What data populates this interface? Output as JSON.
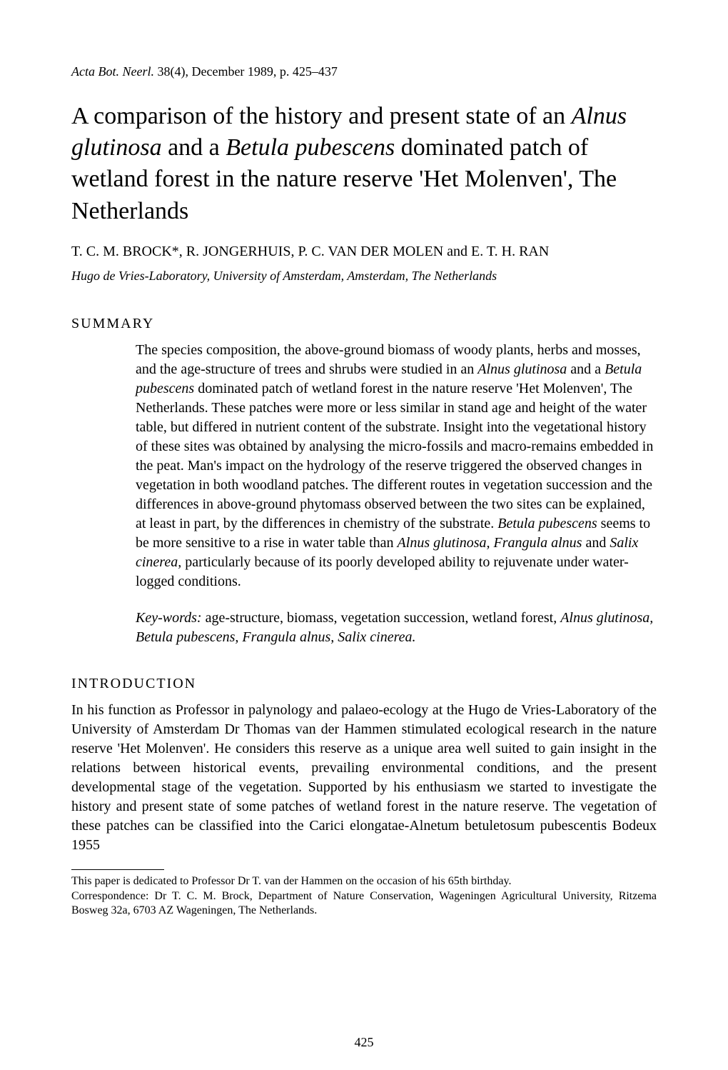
{
  "journal_reference": "Acta Bot. Neerl. 38(4), December 1989, p. 425–437",
  "title_part1": "A comparison of the history and present state of an ",
  "title_italic1": "Alnus glutinosa",
  "title_part2": " and a ",
  "title_italic2": "Betula pubescens",
  "title_part3": " dominated patch of wetland forest in the nature reserve 'Het Molenven', The Netherlands",
  "authors": "T. C. M. BROCK*, R. JONGERHUIS, P. C. VAN DER MOLEN and E. T. H. RAN",
  "affiliation": "Hugo de Vries-Laboratory, University of Amsterdam, Amsterdam, The Netherlands",
  "summary_heading": "SUMMARY",
  "summary_p1_a": "The species composition, the above-ground biomass of woody plants, herbs and mosses, and the age-structure of trees and shrubs were studied in an ",
  "summary_p1_i1": "Alnus glutinosa",
  "summary_p1_b": " and a ",
  "summary_p1_i2": "Betula pubescens",
  "summary_p1_c": " dominated patch of wetland forest in the nature reserve 'Het Molenven', The Netherlands. These patches were more or less similar in stand age and height of the water table, but differed in nutrient content of the substrate. Insight into the vegetational history of these sites was obtained by analysing the micro-fossils and macro-remains embedded in the peat. Man's impact on the hydrology of the reserve triggered the observed changes in vegetation in both woodland patches. The different routes in vegetation succession and the differences in above-ground phytomass observed between the two sites can be explained, at least in part, by the differences in chemistry of the substrate. ",
  "summary_p1_i3": "Betula pubescens",
  "summary_p1_d": " seems to be more sensitive to a rise in water table than ",
  "summary_p1_i4": "Alnus glutinosa, Frangula alnus",
  "summary_p1_e": " and ",
  "summary_p1_i5": "Salix cinerea,",
  "summary_p1_f": " particularly because of its poorly developed ability to rejuvenate under water-logged conditions.",
  "keywords_label": "Key-words:",
  "keywords_a": " age-structure, biomass, vegetation succession, wetland forest, ",
  "keywords_i": "Alnus glutinosa, Betula pubescens, Frangula alnus, Salix cinerea.",
  "intro_heading": "INTRODUCTION",
  "intro_body": "In his function as Professor in palynology and palaeo-ecology at the Hugo de Vries-Laboratory of the University of Amsterdam Dr Thomas van der Hammen stimulated ecological research in the nature reserve 'Het Molenven'. He considers this reserve as a unique area well suited to gain insight in the relations between historical events, prevailing environmental conditions, and the present developmental stage of the vegetation. Supported by his enthusiasm we started to investigate the history and present state of some patches of wetland forest in the nature reserve. The vegetation of these patches can be classified into the Carici elongatae-Alnetum betuletosum pubescentis Bodeux 1955",
  "footnote1": "This paper is dedicated to Professor Dr T. van der Hammen on the occasion of his 65th birthday.",
  "footnote2": "Correspondence: Dr T. C. M. Brock, Department of Nature Conservation, Wageningen Agricultural University, Ritzema Bosweg 32a, 6703 AZ Wageningen, The Netherlands.",
  "page_number": "425"
}
